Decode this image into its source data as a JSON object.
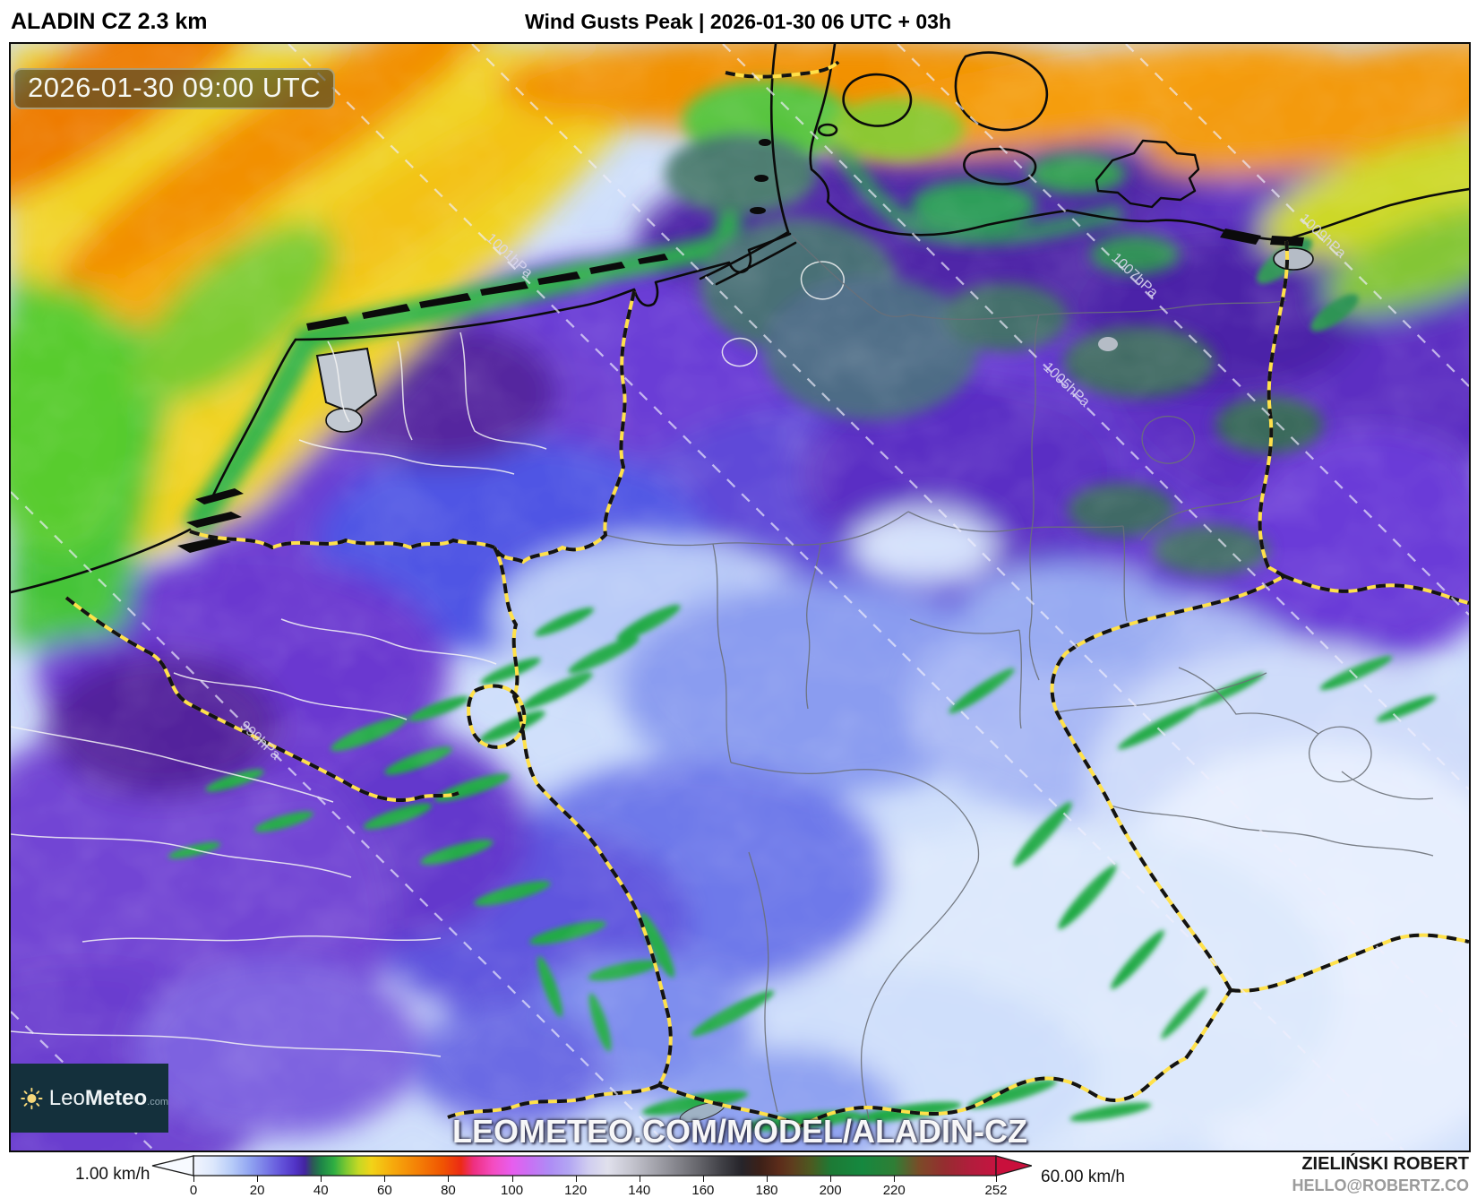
{
  "header": {
    "model_label": "ALADIN CZ 2.3 km",
    "map_title": "Wind Gusts Peak | 2026-01-30 06 UTC + 03h"
  },
  "map": {
    "timestamp": "2026-01-30 09:00 UTC",
    "watermark": "LEOMETEO.COM/MODEL/ALADIN-CZ",
    "isobar_labels": [
      "999hPa",
      "1001hPa",
      "1005hPa",
      "1007hPa",
      "1009hPa"
    ]
  },
  "logo": {
    "brand_prefix": "Leo",
    "brand_suffix": "Meteo",
    "brand_tld": ".com",
    "panel_color": "#14303c",
    "sun_color": "#f6d87a"
  },
  "colorbar": {
    "min_label": "1.00 km/h",
    "max_label": "60.00 km/h",
    "max_value": 252,
    "ticks": [
      0,
      20,
      40,
      60,
      80,
      100,
      120,
      140,
      160,
      180,
      200,
      220,
      252
    ],
    "left_arrow_color": "#f7faff",
    "right_arrow_color": "#c9103c",
    "gradient": [
      {
        "at": 0.0,
        "color": "#f2f5fe"
      },
      {
        "at": 0.024,
        "color": "#dde8fc"
      },
      {
        "at": 0.048,
        "color": "#b6cbf8"
      },
      {
        "at": 0.071,
        "color": "#90a3f1"
      },
      {
        "at": 0.095,
        "color": "#7371e4"
      },
      {
        "at": 0.111,
        "color": "#6150d8"
      },
      {
        "at": 0.127,
        "color": "#5133c6"
      },
      {
        "at": 0.139,
        "color": "#43259f"
      },
      {
        "at": 0.148,
        "color": "#2e5658"
      },
      {
        "at": 0.159,
        "color": "#1e8448"
      },
      {
        "at": 0.175,
        "color": "#2fae42"
      },
      {
        "at": 0.19,
        "color": "#7cc831"
      },
      {
        "at": 0.206,
        "color": "#c6d824"
      },
      {
        "at": 0.222,
        "color": "#f2d318"
      },
      {
        "at": 0.246,
        "color": "#f6ad0d"
      },
      {
        "at": 0.278,
        "color": "#f48206"
      },
      {
        "at": 0.31,
        "color": "#f05502"
      },
      {
        "at": 0.333,
        "color": "#ec2b14"
      },
      {
        "at": 0.349,
        "color": "#ee2f80"
      },
      {
        "at": 0.373,
        "color": "#f44cc0"
      },
      {
        "at": 0.397,
        "color": "#e75dee"
      },
      {
        "at": 0.421,
        "color": "#c673f4"
      },
      {
        "at": 0.444,
        "color": "#ae8cf5"
      },
      {
        "at": 0.468,
        "color": "#b3a6f3"
      },
      {
        "at": 0.492,
        "color": "#d0cdf0"
      },
      {
        "at": 0.516,
        "color": "#e0e0ec"
      },
      {
        "at": 0.548,
        "color": "#c2c2cc"
      },
      {
        "at": 0.587,
        "color": "#96969e"
      },
      {
        "at": 0.627,
        "color": "#68686e"
      },
      {
        "at": 0.659,
        "color": "#3f3f45"
      },
      {
        "at": 0.683,
        "color": "#26242a"
      },
      {
        "at": 0.706,
        "color": "#3c2018"
      },
      {
        "at": 0.73,
        "color": "#5c2c1a"
      },
      {
        "at": 0.746,
        "color": "#5e3d1e"
      },
      {
        "at": 0.77,
        "color": "#4c5a20"
      },
      {
        "at": 0.794,
        "color": "#1d7a35"
      },
      {
        "at": 0.833,
        "color": "#15883f"
      },
      {
        "at": 0.873,
        "color": "#2f7e35"
      },
      {
        "at": 0.905,
        "color": "#7c4a28"
      },
      {
        "at": 0.937,
        "color": "#962c30"
      },
      {
        "at": 0.968,
        "color": "#b11d3c"
      },
      {
        "at": 1.0,
        "color": "#c51440"
      }
    ]
  },
  "credits": {
    "author": "ZIELIŃSKI ROBERT",
    "contact": "HELLO@ROBERTZ.CO"
  }
}
